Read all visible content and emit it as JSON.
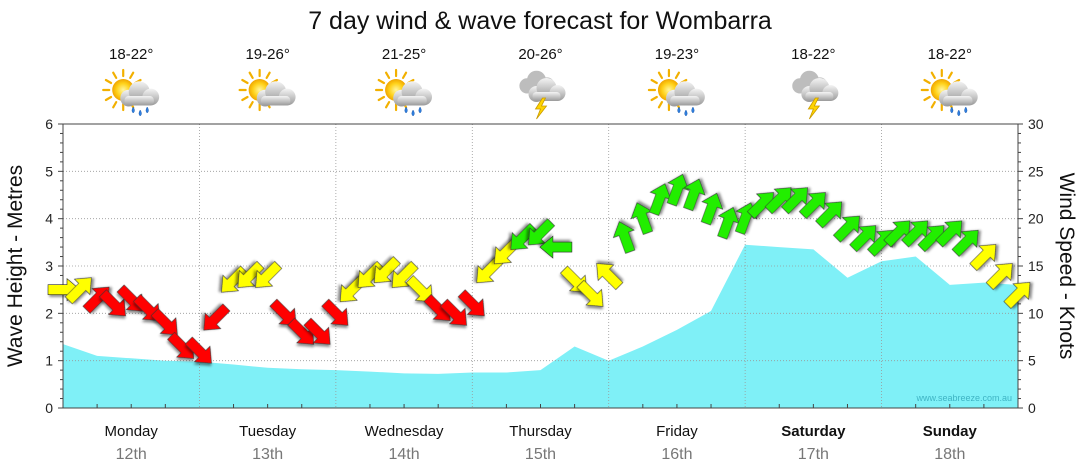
{
  "chart_data": {
    "type": "area",
    "title": "7 day wind & wave forecast for Wombarra",
    "ylabel_left": "Wave Height - Metres",
    "ylabel_right": "Wind Speed - Knots",
    "ylim_left": [
      0,
      6
    ],
    "ylim_right": [
      0,
      30
    ],
    "yticks_left": [
      "0",
      "1",
      "2",
      "3",
      "4",
      "5",
      "6"
    ],
    "yticks_right": [
      "0",
      "5",
      "10",
      "15",
      "20",
      "25",
      "30"
    ],
    "watermark": "www.seabreeze.com.au",
    "grid": true,
    "days": [
      {
        "name": "Monday",
        "date": "12th",
        "temp": "18-22°",
        "weather": "sun-cloud-rain",
        "bold": false
      },
      {
        "name": "Tuesday",
        "date": "13th",
        "temp": "19-26°",
        "weather": "sun-cloud",
        "bold": false
      },
      {
        "name": "Wednesday",
        "date": "14th",
        "temp": "21-25°",
        "weather": "sun-cloud-rain",
        "bold": false
      },
      {
        "name": "Thursday",
        "date": "15th",
        "temp": "20-26°",
        "weather": "storm",
        "bold": false
      },
      {
        "name": "Friday",
        "date": "16th",
        "temp": "19-23°",
        "weather": "sun-cloud-rain",
        "bold": false
      },
      {
        "name": "Saturday",
        "date": "17th",
        "temp": "18-22°",
        "weather": "storm",
        "bold": true
      },
      {
        "name": "Sunday",
        "date": "18th",
        "temp": "18-22°",
        "weather": "sun-cloud-rain",
        "bold": true
      }
    ],
    "wave_series": {
      "name": "Wave Height (m)",
      "x_days": [
        0,
        0.25,
        0.5,
        0.75,
        1.0,
        1.25,
        1.5,
        1.75,
        2.0,
        2.25,
        2.5,
        2.75,
        3.0,
        3.25,
        3.5,
        3.75,
        4.0,
        4.25,
        4.5,
        4.75,
        5.0,
        5.25,
        5.5,
        5.75,
        6.0,
        6.25,
        6.5,
        6.75,
        7.0
      ],
      "values": [
        1.35,
        1.1,
        1.05,
        1.0,
        0.98,
        0.92,
        0.85,
        0.82,
        0.8,
        0.77,
        0.73,
        0.72,
        0.75,
        0.75,
        0.8,
        1.3,
        1.0,
        1.3,
        1.65,
        2.05,
        3.45,
        3.4,
        3.35,
        2.75,
        3.1,
        3.2,
        2.6,
        2.65,
        2.6
      ]
    },
    "wind_series": {
      "name": "Wind Speed (knots)",
      "x_days": [
        0.0,
        0.12,
        0.25,
        0.37,
        0.5,
        0.62,
        0.75,
        0.87,
        1.0,
        1.12,
        1.25,
        1.37,
        1.5,
        1.62,
        1.75,
        1.87,
        2.0,
        2.12,
        2.25,
        2.37,
        2.5,
        2.62,
        2.75,
        2.87,
        3.0,
        3.12,
        3.25,
        3.37,
        3.5,
        3.62,
        3.75,
        3.87,
        4.0,
        4.12,
        4.25,
        4.37,
        4.5,
        4.62,
        4.75,
        4.87,
        5.0,
        5.12,
        5.25,
        5.37,
        5.5,
        5.62,
        5.75,
        5.87,
        6.0,
        6.12,
        6.25,
        6.37,
        6.5,
        6.62,
        6.75,
        6.87,
        7.0
      ],
      "values": [
        12.5,
        12.5,
        11.5,
        11.0,
        11.5,
        10.5,
        9.0,
        6.5,
        6.0,
        9.5,
        13.5,
        14.0,
        14.0,
        10.0,
        8.0,
        8.0,
        10.0,
        12.5,
        14.0,
        14.5,
        14.0,
        12.5,
        10.5,
        10.0,
        11.0,
        14.5,
        16.5,
        18.0,
        18.5,
        17.0,
        13.5,
        12.0,
        14.0,
        18.0,
        20.0,
        22.0,
        23.0,
        22.5,
        21.0,
        19.5,
        20.0,
        21.5,
        22.0,
        22.0,
        21.5,
        20.5,
        19.0,
        18.0,
        17.5,
        18.5,
        18.5,
        18.0,
        18.5,
        17.5,
        16.0,
        14.0,
        12.0
      ],
      "direction_from_deg": [
        270,
        225,
        225,
        315,
        315,
        315,
        315,
        315,
        315,
        45,
        45,
        45,
        45,
        315,
        315,
        315,
        315,
        45,
        45,
        45,
        45,
        315,
        315,
        315,
        315,
        45,
        45,
        45,
        45,
        90,
        315,
        315,
        135,
        160,
        160,
        200,
        200,
        200,
        200,
        200,
        200,
        225,
        225,
        225,
        225,
        225,
        225,
        225,
        225,
        225,
        225,
        225,
        225,
        225,
        225,
        225,
        225
      ]
    }
  }
}
